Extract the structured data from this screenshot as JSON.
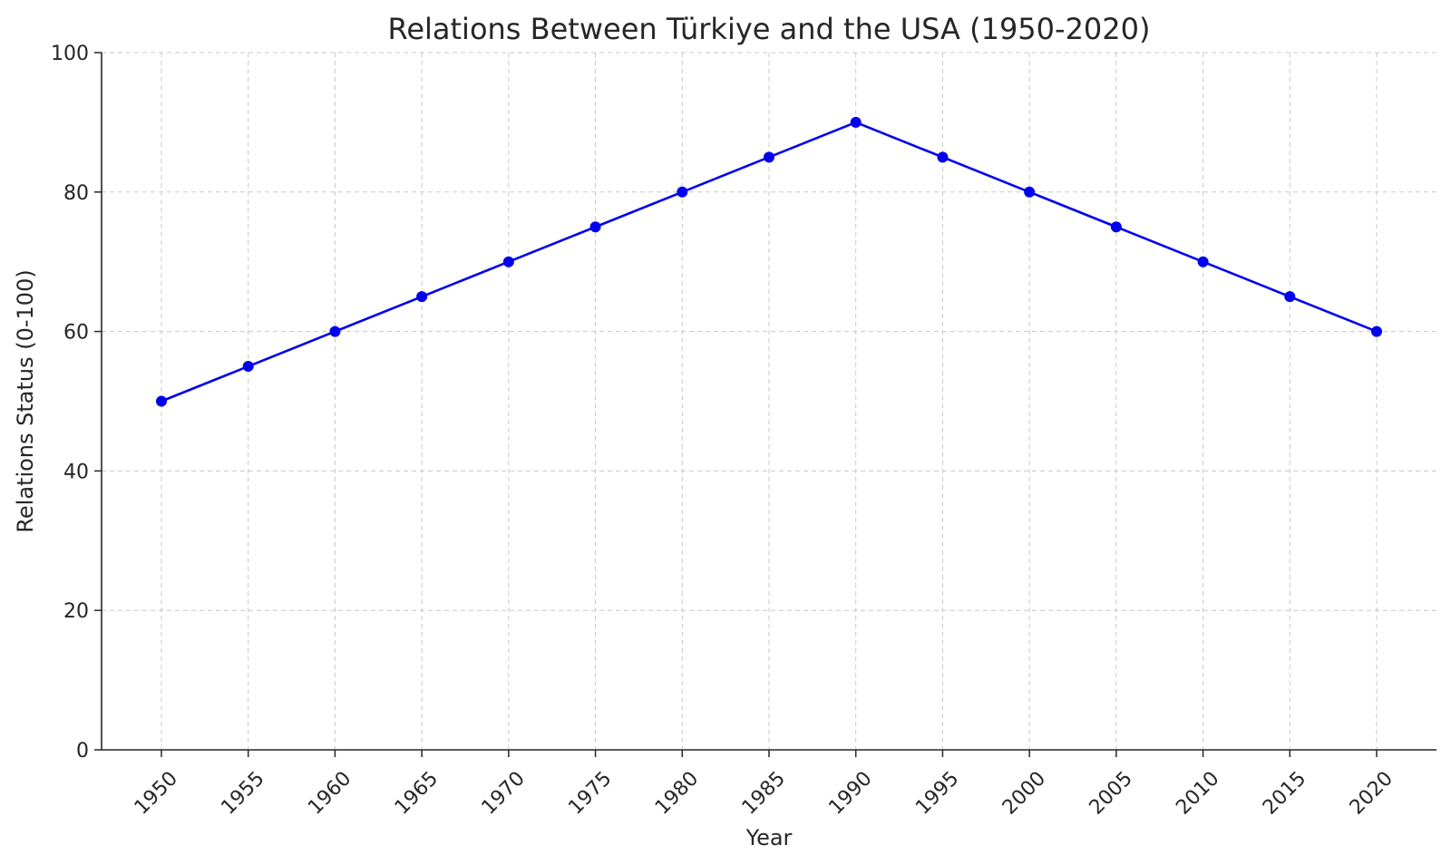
{
  "chart_data": {
    "type": "line",
    "title": "Relations Between Türkiye and the USA (1950-2020)",
    "xlabel": "Year",
    "ylabel": "Relations Status (0-100)",
    "x": [
      1950,
      1955,
      1960,
      1965,
      1970,
      1975,
      1980,
      1985,
      1990,
      1995,
      2000,
      2005,
      2010,
      2015,
      2020
    ],
    "series": [
      {
        "values": [
          50,
          55,
          60,
          65,
          70,
          75,
          80,
          85,
          90,
          85,
          80,
          75,
          70,
          65,
          60
        ],
        "color": "#0000ee",
        "marker": "circle"
      }
    ],
    "xticks": [
      "1950",
      "1955",
      "1960",
      "1965",
      "1970",
      "1975",
      "1980",
      "1985",
      "1990",
      "1995",
      "2000",
      "2005",
      "2010",
      "2015",
      "2020"
    ],
    "yticks": [
      0,
      20,
      40,
      60,
      80,
      100
    ],
    "ylim": [
      0,
      100
    ],
    "grid": true
  }
}
